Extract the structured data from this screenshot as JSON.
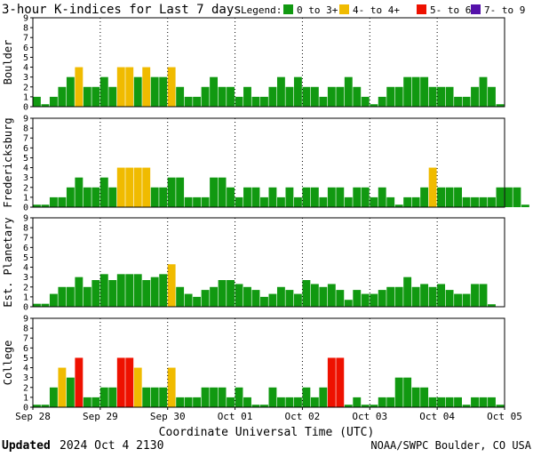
{
  "title": "3-hour K-indices for Last 7 days",
  "legend": {
    "label": "Legend:",
    "items": [
      {
        "label": "0 to 3+",
        "color": "#119911"
      },
      {
        "label": "4- to 4+",
        "color": "#f0bb00"
      },
      {
        "label": "5- to 6+",
        "color": "#ee1100"
      },
      {
        "label": "7- to 9",
        "color": "#5511aa"
      }
    ]
  },
  "footer": {
    "updated_label": "Updated",
    "updated_value": "2024 Oct  4 2130",
    "source": "NOAA/SWPC Boulder, CO USA"
  },
  "chart_data": {
    "type": "bar",
    "xlabel": "Coordinate Universal Time (UTC)",
    "x_ticks": [
      "Sep 28",
      "Sep 29",
      "Sep 30",
      "Oct 01",
      "Oct 02",
      "Oct 03",
      "Oct 04",
      "Oct 05"
    ],
    "ylim": [
      0,
      9
    ],
    "y_ticks": [
      0,
      1,
      2,
      3,
      4,
      5,
      6,
      7,
      8,
      9
    ],
    "grid": true,
    "levels": [
      {
        "min": 0,
        "max": 3.99,
        "color": "#119911"
      },
      {
        "min": 4,
        "max": 4.99,
        "color": "#f0bb00"
      },
      {
        "min": 5,
        "max": 6.99,
        "color": "#ee1100"
      },
      {
        "min": 7,
        "max": 9,
        "color": "#5511aa"
      }
    ],
    "panels": [
      {
        "name": "Boulder",
        "values": [
          1,
          0,
          1,
          2,
          3,
          4,
          2,
          2,
          3,
          2,
          4,
          4,
          3,
          4,
          3,
          3,
          4,
          2,
          1,
          1,
          2,
          3,
          2,
          2,
          1,
          2,
          1,
          1,
          2,
          3,
          2,
          3,
          2,
          2,
          1,
          2,
          2,
          3,
          2,
          1,
          0,
          1,
          2,
          2,
          3,
          3,
          3,
          2,
          2,
          2,
          1,
          1,
          2,
          3,
          2,
          0
        ]
      },
      {
        "name": "Fredericksburg",
        "values": [
          0,
          0,
          1,
          1,
          2,
          3,
          2,
          2,
          3,
          2,
          4,
          4,
          4,
          4,
          2,
          2,
          3,
          3,
          1,
          1,
          1,
          3,
          3,
          2,
          1,
          2,
          2,
          1,
          2,
          1,
          2,
          1,
          2,
          2,
          1,
          2,
          2,
          1,
          2,
          2,
          1,
          2,
          1,
          0,
          1,
          1,
          2,
          4,
          2,
          2,
          2,
          1,
          1,
          1,
          1,
          2,
          2,
          2,
          0
        ]
      },
      {
        "name": "Est. Planetary",
        "values": [
          0.3,
          0.3,
          1.3,
          2,
          2,
          3,
          2,
          2.7,
          3.3,
          2.7,
          3.3,
          3.3,
          3.3,
          2.7,
          3,
          3.3,
          4.3,
          2,
          1.3,
          1,
          1.7,
          2,
          2.7,
          2.7,
          2.3,
          2,
          1.7,
          1,
          1.3,
          2,
          1.7,
          1.3,
          2.7,
          2.3,
          2,
          2.3,
          1.7,
          0.7,
          1.7,
          1.3,
          1.3,
          1.7,
          2,
          2,
          3,
          2,
          2.3,
          2,
          2.3,
          1.7,
          1.3,
          1.3,
          2.3,
          2.3,
          0
        ]
      },
      {
        "name": "College",
        "values": [
          0,
          0,
          2,
          4,
          3,
          5,
          1,
          1,
          2,
          2,
          5,
          5,
          4,
          2,
          2,
          2,
          4,
          1,
          1,
          1,
          2,
          2,
          2,
          1,
          2,
          1,
          0,
          0,
          2,
          1,
          1,
          1,
          2,
          1,
          2,
          5,
          5,
          0,
          1,
          0,
          0,
          1,
          1,
          3,
          3,
          2,
          2,
          1,
          1,
          1,
          1,
          0,
          1,
          1,
          1,
          0
        ]
      }
    ]
  }
}
